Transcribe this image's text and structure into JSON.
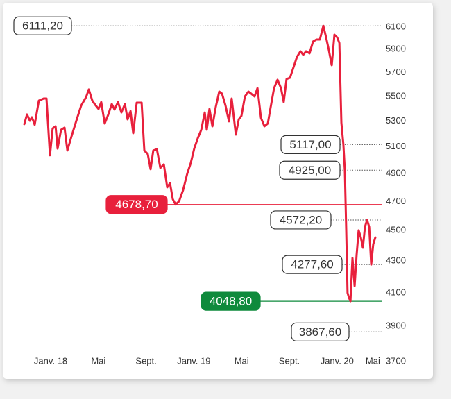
{
  "chart_data": {
    "type": "line",
    "log_y": true,
    "color": "#e8203c",
    "x": [
      -2.21,
      -1.98,
      -1.74,
      -1.57,
      -1.34,
      -0.99,
      -0.58,
      -0.35,
      -0.06,
      0.17,
      0.41,
      0.58,
      0.87,
      1.16,
      1.4,
      1.74,
      2.15,
      2.56,
      2.97,
      3.2,
      3.49,
      3.78,
      4.01,
      4.24,
      4.53,
      4.83,
      5.12,
      5.35,
      5.64,
      5.93,
      6.22,
      6.45,
      6.69,
      6.92,
      7.21,
      7.62,
      7.85,
      8.14,
      8.37,
      8.6,
      8.9,
      9.19,
      9.48,
      9.77,
      10.0,
      10.23,
      10.47,
      10.76,
      11.1,
      11.45,
      11.74,
      12.03,
      12.33,
      12.62,
      12.91,
      13.08,
      13.31,
      13.55,
      13.84,
      14.13,
      14.36,
      14.65,
      14.94,
      15.17,
      15.52,
      15.76,
      15.99,
      16.28,
      16.57,
      16.8,
      17.09,
      17.33,
      17.62,
      17.91,
      18.2,
      18.43,
      18.72,
      19.01,
      19.3,
      19.53,
      19.77,
      20.06,
      20.35,
      20.64,
      20.93,
      21.16,
      21.4,
      21.69,
      21.98,
      22.27,
      22.56,
      22.85,
      23.08,
      23.31,
      23.55,
      23.78,
      24.01,
      24.19,
      24.36,
      24.53,
      24.65,
      24.77,
      24.88,
      25.0,
      25.12,
      25.29,
      25.47,
      25.64,
      25.81,
      25.99,
      26.16,
      26.34,
      26.51,
      26.69,
      26.86,
      27.03,
      27.21
    ],
    "values": [
      5276,
      5353,
      5303,
      5331,
      5271,
      5465,
      5482,
      5482,
      5036,
      5243,
      5259,
      5087,
      5232,
      5249,
      5072,
      5178,
      5303,
      5425,
      5494,
      5557,
      5465,
      5425,
      5397,
      5453,
      5281,
      5353,
      5437,
      5392,
      5453,
      5369,
      5437,
      5314,
      5380,
      5205,
      5448,
      5448,
      5072,
      5045,
      4932,
      5072,
      5082,
      4942,
      4968,
      4801,
      4831,
      4717,
      4678.7,
      4702,
      4781,
      4901,
      4978,
      5087,
      5167,
      5232,
      5369,
      5232,
      5397,
      5259,
      5414,
      5539,
      5522,
      5425,
      5298,
      5482,
      5194,
      5314,
      5342,
      5499,
      5539,
      5522,
      5499,
      5568,
      5326,
      5259,
      5281,
      5409,
      5568,
      5638,
      5568,
      5453,
      5644,
      5655,
      5744,
      5834,
      5883,
      5852,
      5883,
      5865,
      5969,
      5987,
      5987,
      6111.2,
      6006,
      5895,
      5762,
      6031,
      6006,
      5956,
      5287,
      5117,
      4925,
      4502,
      4100,
      4070,
      4048.8,
      4319,
      4143,
      4341,
      4502,
      4455,
      4386,
      4525,
      4572.2,
      4525,
      4277.6,
      4409,
      4455
    ],
    "xlim": [
      -2.5,
      28
    ],
    "xticks": [
      {
        "value": 0,
        "label": "Janv. 18"
      },
      {
        "value": 4,
        "label": "Mai"
      },
      {
        "value": 8,
        "label": "Sept."
      },
      {
        "value": 12,
        "label": "Janv. 19"
      },
      {
        "value": 16,
        "label": "Mai"
      },
      {
        "value": 20,
        "label": "Sept."
      },
      {
        "value": 24,
        "label": "Janv. 20"
      },
      {
        "value": 27,
        "label": "Mai"
      }
    ],
    "ylim": [
      3700,
      6100
    ],
    "yticks": [
      3700,
      3900,
      4100,
      4300,
      4500,
      4700,
      4900,
      5100,
      5300,
      5500,
      5700,
      5900,
      6100
    ],
    "annotations": [
      {
        "label": "6111,20",
        "value": 6111.2
      },
      {
        "label": "5117,00",
        "value": 5117
      },
      {
        "label": "4925,00",
        "value": 4925
      },
      {
        "label": "4678,70",
        "value": 4678.7,
        "color": "#e8203c"
      },
      {
        "label": "4572,20",
        "value": 4572.2
      },
      {
        "label": "4277,60",
        "value": 4277.6
      },
      {
        "label": "4048,80",
        "value": 4048.8,
        "color": "#0f8a3c"
      },
      {
        "label": "3867,60",
        "value": 3867.6
      }
    ]
  }
}
